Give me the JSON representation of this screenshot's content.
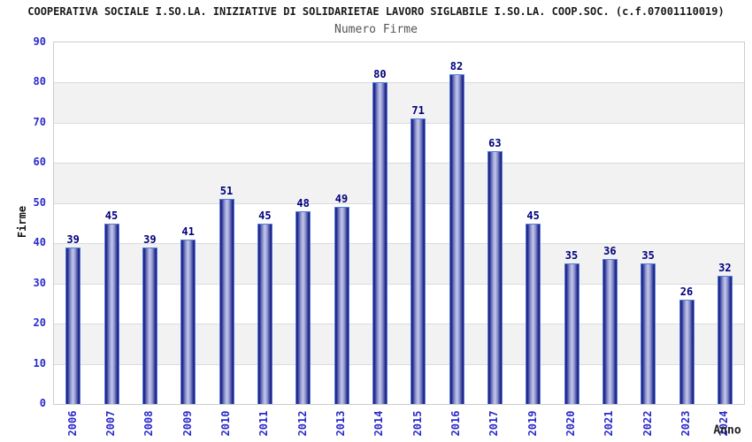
{
  "header": {
    "title": "COOPERATIVA SOCIALE I.SO.LA. INIZIATIVE DI SOLIDARIETAE LAVORO SIGLABILE I.SO.LA. COOP.SOC. (c.f.07001110019)",
    "subtitle": "Numero Firme"
  },
  "chart_data": {
    "type": "bar",
    "title": "COOPERATIVA SOCIALE I.SO.LA. INIZIATIVE DI SOLIDARIETAE LAVORO SIGLABILE I.SO.LA. COOP.SOC. (c.f.07001110019)",
    "subtitle": "Numero Firme",
    "xlabel": "Anno",
    "ylabel": "Firme",
    "categories": [
      "2006",
      "2007",
      "2008",
      "2009",
      "2010",
      "2011",
      "2012",
      "2013",
      "2014",
      "2015",
      "2016",
      "2017",
      "2019",
      "2020",
      "2021",
      "2022",
      "2023",
      "2024"
    ],
    "values": [
      39,
      45,
      39,
      41,
      51,
      45,
      48,
      49,
      80,
      71,
      82,
      63,
      45,
      35,
      36,
      35,
      26,
      32
    ],
    "ylim": [
      0,
      90
    ],
    "yticks": [
      0,
      10,
      20,
      30,
      40,
      50,
      60,
      70,
      80,
      90
    ],
    "grid": true,
    "legend_position": "none",
    "value_labels_shown": true,
    "x_tick_rotation_degrees": 90
  },
  "colors": {
    "bar_edge": "#181a74",
    "bar_mid": "#2c2f93",
    "bar_mid2": "#8b93cc",
    "bar_light": "#c5c9ec",
    "bar_border": "#4f7ee0",
    "axis_tick_text": "#2a2ac9",
    "value_label": "#00007e",
    "band_gray": "#f2f2f2",
    "band_white": "#ffffff",
    "grid_line": "#dcdcdc",
    "plot_border": "#cccccc",
    "title_color": "#1a1a1a",
    "subtitle_color": "#555555",
    "axis_title_color": "#111111"
  }
}
